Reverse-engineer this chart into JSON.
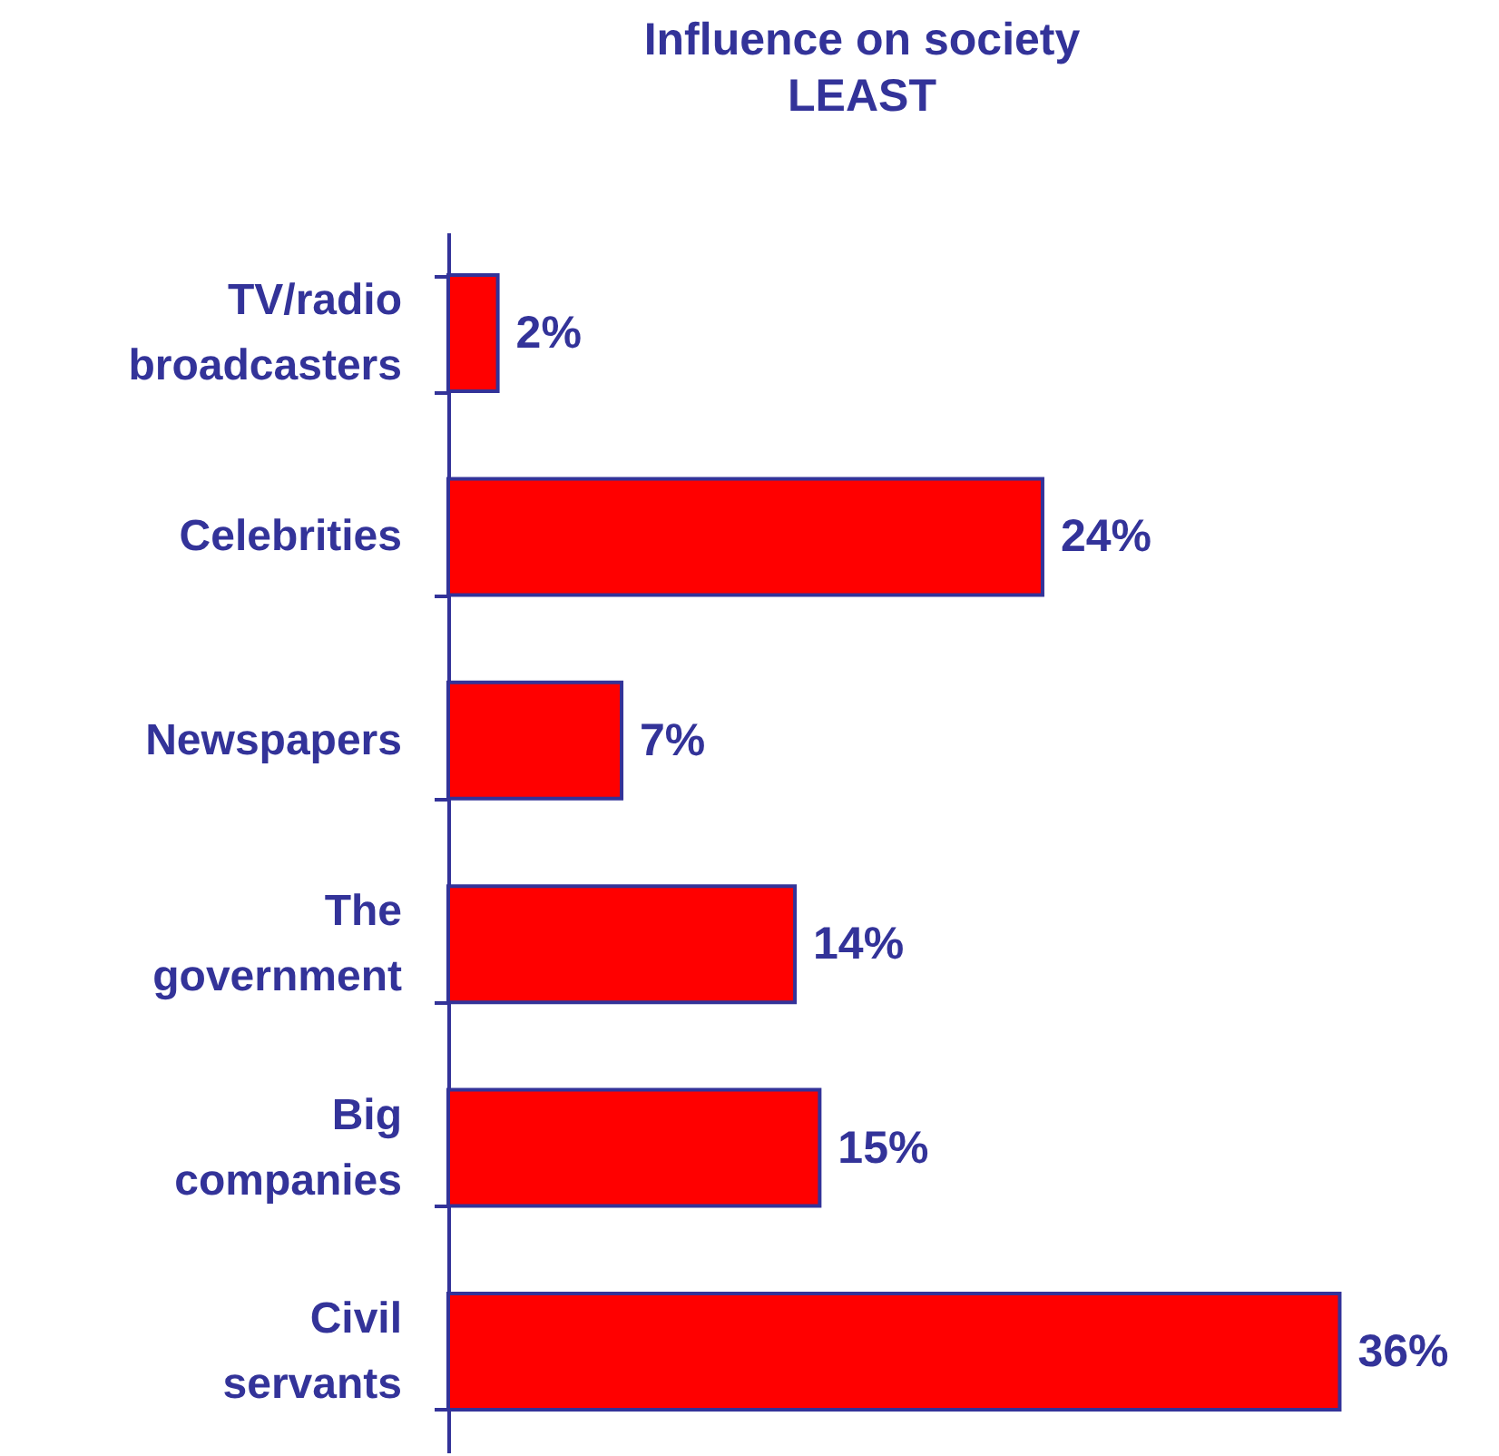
{
  "chart_data": {
    "type": "bar",
    "orientation": "horizontal",
    "title": "Influence on society",
    "subtitle": "LEAST",
    "categories": [
      "TV/radio broadcasters",
      "Celebrities",
      "Newspapers",
      "The government",
      "Big companies",
      "Civil servants"
    ],
    "values": [
      2,
      24,
      7,
      14,
      15,
      36
    ],
    "value_labels": [
      "2%",
      "24%",
      "7%",
      "14%",
      "15%",
      "36%"
    ],
    "color": "#ff0000",
    "grid": false
  }
}
